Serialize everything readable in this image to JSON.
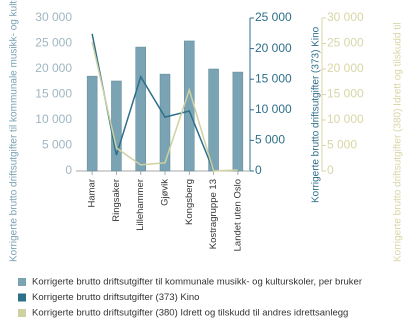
{
  "chart_data": {
    "type": "bar",
    "categories": [
      "Hamar",
      "Ringsaker",
      "Lillehammer",
      "Gjøvik",
      "Kongsberg",
      "Kostragruppe 13",
      "Landet uten Oslo"
    ],
    "series": [
      {
        "name": "Korrigerte brutto driftsutgifter til kommunale musikk- og kulturskoler, per bruker",
        "type": "bar",
        "axis": "y",
        "color": "#7aa3b3",
        "values": [
          18600,
          17650,
          24300,
          19000,
          25500,
          20000,
          19400
        ]
      },
      {
        "name": "Korrigerte brutto driftsutgifter (373) Kino",
        "type": "line",
        "axis": "y2",
        "color": "#2e6f8a",
        "values": [
          22400,
          2600,
          15400,
          8800,
          9800,
          0,
          null
        ]
      },
      {
        "name": "Korrigerte brutto driftsutgifter (380) Idrett og tilskudd til andres idrettsanlegg",
        "type": "line",
        "axis": "y3",
        "color": "#cfd1a3",
        "values": [
          25300,
          4500,
          1200,
          1600,
          15900,
          0,
          200
        ]
      }
    ],
    "ylabel": "Korrigerte brutto driftsutgifter til kommunale musikk- og kultu",
    "y2label": "Korrigerte brutto driftsutgifter (373) Kino",
    "y3label": "Korrigerte brutto driftsutgifter (380) Idrett og tilskudd til",
    "ylim": [
      0,
      30000
    ],
    "yticks": [
      0,
      {
        "value": 5000,
        "label": "5 000"
      },
      {
        "value": 10000,
        "label": "10 000"
      },
      {
        "value": 15000,
        "label": "15 000"
      },
      {
        "value": 20000,
        "label": "20 000"
      },
      {
        "value": 25000,
        "label": "25 000"
      },
      {
        "value": 30000,
        "label": "30 000"
      }
    ],
    "y2lim": [
      0,
      25000
    ],
    "y2ticks": [
      0,
      {
        "value": 5000,
        "label": "5 000"
      },
      {
        "value": 10000,
        "label": "10 000"
      },
      {
        "value": 15000,
        "label": "15 000"
      },
      {
        "value": 20000,
        "label": "20 000"
      },
      {
        "value": 25000,
        "label": "25 000"
      }
    ],
    "y3lim": [
      0,
      30000
    ],
    "y3ticks": [
      0,
      {
        "value": 5000,
        "label": "5 000"
      },
      {
        "value": 10000,
        "label": "10 000"
      },
      {
        "value": 15000,
        "label": "15 000"
      },
      {
        "value": 20000,
        "label": "20 000"
      },
      {
        "value": 25000,
        "label": "25 000"
      },
      {
        "value": 30000,
        "label": "30 000"
      }
    ],
    "axis_colors": {
      "y": "#9fb6c1",
      "y2": "#2e6f8a",
      "y3": "#d8d6a6"
    }
  }
}
